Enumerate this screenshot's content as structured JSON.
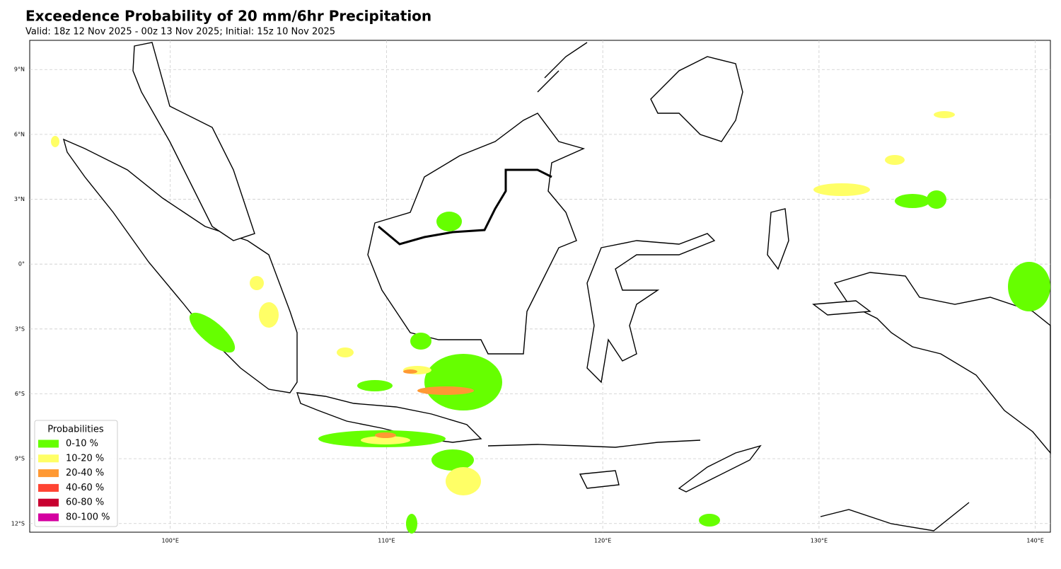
{
  "map": {
    "title": "Exceedence Probability of 20 mm/6hr Precipitation",
    "subtitle": "Valid: 18z 12 Nov 2025 - 00z 13 Nov 2025; Initial: 15z 10 Nov 2025",
    "xlim": [
      93.5,
      140.7
    ],
    "ylim": [
      -12.4,
      10.35
    ],
    "grid": true,
    "xticks": [
      {
        "value": 100,
        "label": "100°E"
      },
      {
        "value": 110,
        "label": "110°E"
      },
      {
        "value": 120,
        "label": "120°E"
      },
      {
        "value": 130,
        "label": "130°E"
      },
      {
        "value": 140,
        "label": "140°E"
      }
    ],
    "yticks": [
      {
        "value": 9,
        "label": "9°N"
      },
      {
        "value": 6,
        "label": "6°N"
      },
      {
        "value": 3,
        "label": "3°N"
      },
      {
        "value": 0,
        "label": "0°"
      },
      {
        "value": -3,
        "label": "3°S"
      },
      {
        "value": -6,
        "label": "6°S"
      },
      {
        "value": -9,
        "label": "9°S"
      },
      {
        "value": -12,
        "label": "12°S"
      }
    ],
    "legend": {
      "title": "Probabilities",
      "items": [
        {
          "label": "0-10 %",
          "color": "#66ff00"
        },
        {
          "label": "10-20 %",
          "color": "#ffff66"
        },
        {
          "label": "20-40 %",
          "color": "#ff9933"
        },
        {
          "label": "40-60 %",
          "color": "#ff4433"
        },
        {
          "label": "60-80 %",
          "color": "#c80030"
        },
        {
          "label": "80-100 %",
          "color": "#d400a0"
        }
      ]
    }
  }
}
